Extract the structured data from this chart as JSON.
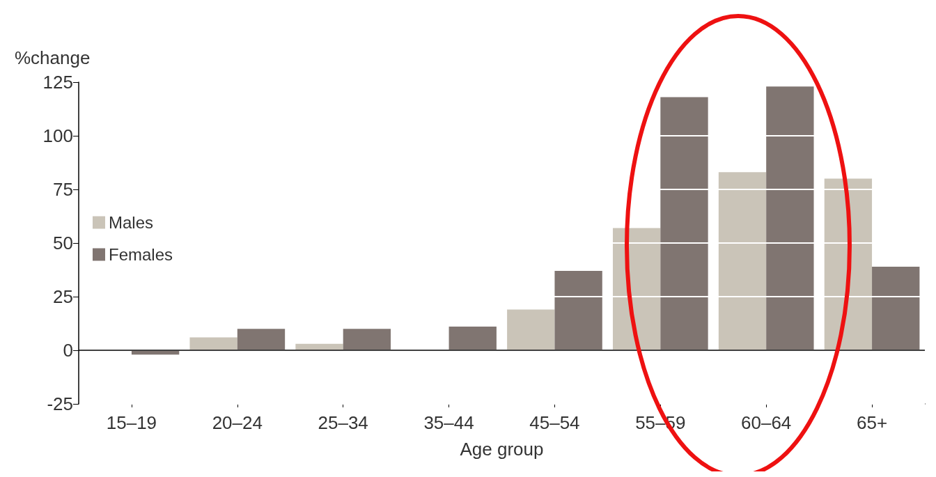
{
  "chart_data": {
    "type": "bar",
    "ylabel": "%change",
    "xlabel": "Age group",
    "categories": [
      "15–19",
      "20–24",
      "25–34",
      "35–44",
      "45–54",
      "55–59",
      "60–64",
      "65+"
    ],
    "series": [
      {
        "name": "Males",
        "color": "#cac4b8",
        "values": [
          0,
          6,
          3,
          0,
          19,
          57,
          83,
          80
        ]
      },
      {
        "name": "Females",
        "color": "#807571",
        "values": [
          -2,
          10,
          10,
          11,
          37,
          118,
          123,
          39
        ]
      }
    ],
    "ylim": [
      -25,
      125
    ],
    "yticks": [
      -25,
      0,
      25,
      50,
      75,
      100,
      125
    ],
    "grid": "y",
    "legend": "left",
    "ref_lines": [
      {
        "axis": "y",
        "value": 0
      }
    ]
  }
}
